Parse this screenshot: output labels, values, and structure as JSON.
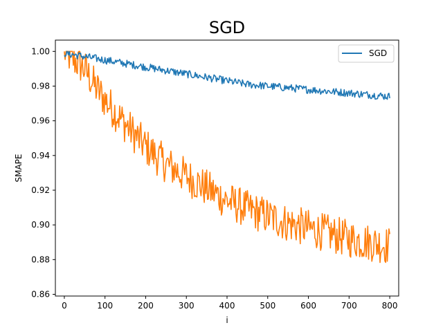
{
  "chart_data": {
    "type": "line",
    "title": "SGD",
    "xlabel": "i",
    "ylabel": "SMAPE",
    "xlim": [
      -22,
      822
    ],
    "ylim": [
      0.859,
      1.0065
    ],
    "xticks": [
      0,
      100,
      200,
      300,
      400,
      500,
      600,
      700,
      800
    ],
    "yticks": [
      0.86,
      0.88,
      0.9,
      0.92,
      0.94,
      0.96,
      0.98,
      1.0
    ],
    "ytick_labels": [
      "0.86",
      "0.88",
      "0.90",
      "0.92",
      "0.94",
      "0.96",
      "0.98",
      "1.00"
    ],
    "grid": false,
    "legend": {
      "location": "upper right",
      "entries": [
        "SGD"
      ]
    },
    "series": [
      {
        "name": "SGD",
        "color": "#1f77b4",
        "x": [
          0,
          50,
          100,
          150,
          200,
          250,
          300,
          350,
          400,
          450,
          500,
          550,
          600,
          650,
          700,
          750,
          800
        ],
        "values": [
          0.999,
          0.997,
          0.995,
          0.993,
          0.991,
          0.989,
          0.987,
          0.985,
          0.983,
          0.981,
          0.98,
          0.979,
          0.978,
          0.977,
          0.976,
          0.975,
          0.974
        ],
        "noise_amplitude": 0.0022
      },
      {
        "name": "",
        "color": "#ff7f0e",
        "x": [
          0,
          25,
          50,
          75,
          100,
          150,
          200,
          250,
          300,
          350,
          400,
          450,
          500,
          550,
          600,
          650,
          700,
          750,
          800
        ],
        "values": [
          1.0,
          0.995,
          0.99,
          0.98,
          0.972,
          0.958,
          0.945,
          0.935,
          0.928,
          0.921,
          0.914,
          0.909,
          0.905,
          0.901,
          0.898,
          0.895,
          0.892,
          0.89,
          0.888
        ],
        "noise_amplitude": 0.011
      }
    ]
  }
}
